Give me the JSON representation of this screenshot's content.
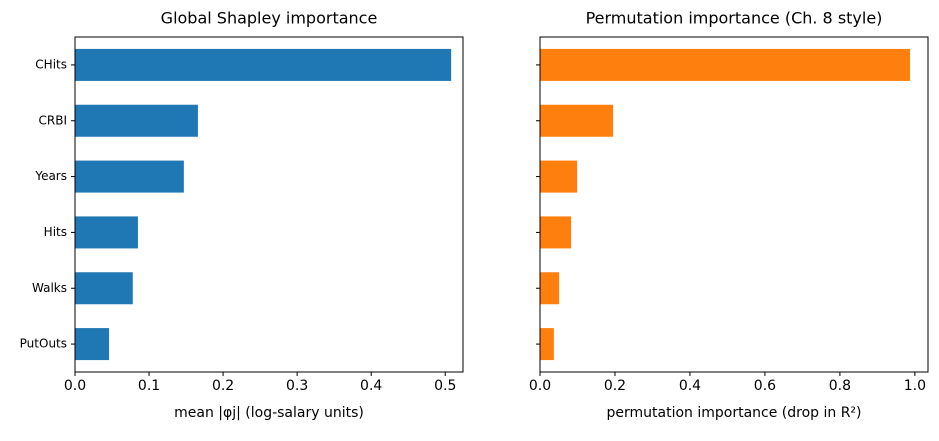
{
  "chart_data": [
    {
      "type": "barh",
      "title": "Global Shapley importance",
      "xlabel": "mean |φj| (log-salary units)",
      "categories": [
        "CHits",
        "CRBI",
        "Years",
        "Hits",
        "Walks",
        "PutOuts"
      ],
      "values": [
        0.508,
        0.166,
        0.147,
        0.085,
        0.078,
        0.046
      ],
      "color": "#1f77b4",
      "xlim": [
        0,
        0.524
      ],
      "xticks": [
        {
          "value": 0,
          "label": "0.0"
        },
        0.1,
        0.2,
        0.3,
        0.4,
        0.5
      ]
    },
    {
      "type": "barh",
      "title": "Permutation importance (Ch. 8 style)",
      "xlabel": "permutation importance (drop in R²)",
      "values": [
        0.987,
        0.195,
        0.099,
        0.083,
        0.051,
        0.037
      ],
      "color": "#ff7f0e",
      "xlim": [
        0,
        1.035
      ],
      "xticks": [
        {
          "value": 0,
          "label": "0.0"
        },
        0.2,
        0.4,
        0.6,
        0.8,
        {
          "value": 1,
          "label": "1.0"
        }
      ]
    }
  ]
}
